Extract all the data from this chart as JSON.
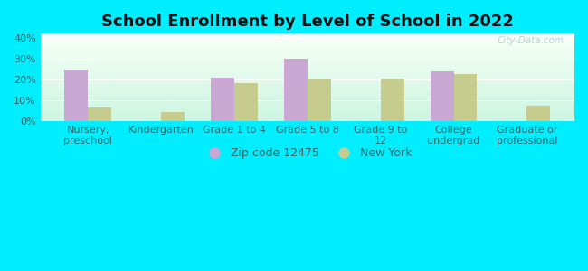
{
  "title": "School Enrollment by Level of School in 2022",
  "categories": [
    "Nursery,\npreschool",
    "Kindergarten",
    "Grade 1 to 4",
    "Grade 5 to 8",
    "Grade 9 to\n12",
    "College\nundergrad",
    "Graduate or\nprofessional"
  ],
  "zipcode_values": [
    25.0,
    0,
    21.0,
    30.0,
    0,
    24.0,
    0
  ],
  "newyork_values": [
    6.5,
    4.5,
    18.5,
    20.0,
    20.5,
    22.5,
    7.5
  ],
  "zipcode_color": "#c9a8d4",
  "newyork_color": "#c5cc8e",
  "background_outer": "#00eeff",
  "ylim": [
    0,
    42
  ],
  "yticks": [
    0,
    10,
    20,
    30,
    40
  ],
  "ytick_labels": [
    "0%",
    "10%",
    "20%",
    "30%",
    "40%"
  ],
  "bar_width": 0.32,
  "legend_labels": [
    "Zip code 12475",
    "New York"
  ],
  "watermark": "City-Data.com",
  "title_fontsize": 13,
  "tick_fontsize": 8,
  "label_color": "#336666"
}
